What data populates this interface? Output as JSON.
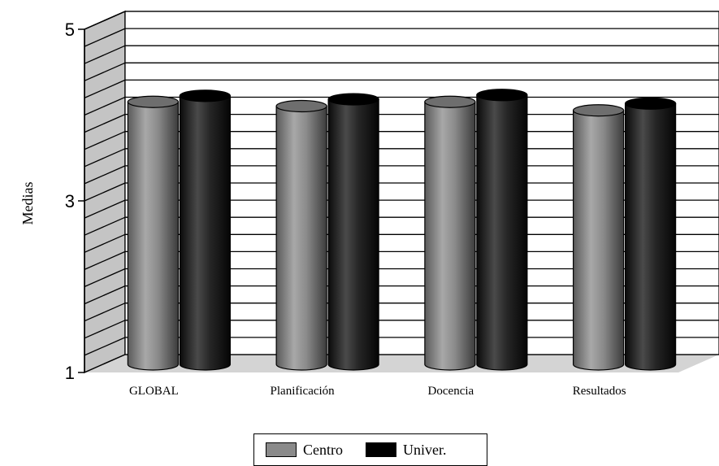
{
  "chart_data": {
    "type": "bar",
    "style": "3d-cylinder",
    "categories": [
      "GLOBAL",
      "Planificación",
      "Docencia",
      "Resultados"
    ],
    "series": [
      {
        "name": "Centro",
        "values": [
          4.05,
          4.0,
          4.05,
          3.95
        ],
        "color": "#8a8a8a"
      },
      {
        "name": "Univer.",
        "values": [
          4.12,
          4.08,
          4.13,
          4.03
        ],
        "color": "#1a1a1a"
      }
    ],
    "ylabel": "Medias",
    "ylim": [
      1,
      5
    ],
    "yticks": [
      "5",
      "3",
      "1"
    ],
    "grid": true,
    "legend": "bottom-center"
  }
}
